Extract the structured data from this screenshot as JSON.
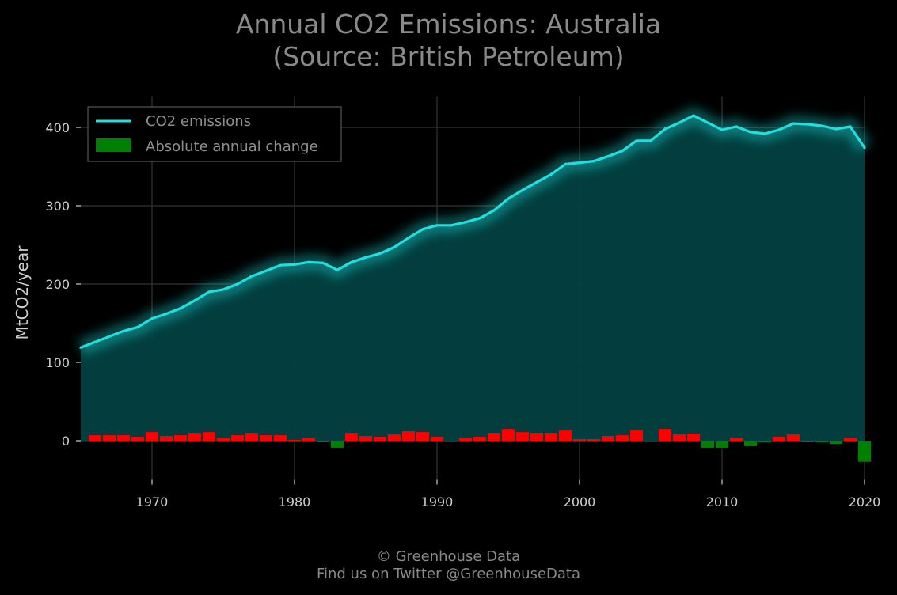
{
  "title_line1": "Annual CO2 Emissions: Australia",
  "title_line2": "(Source: British Petroleum)",
  "footer_line1": "© Greenhouse Data",
  "footer_line2": "Find us on Twitter @GreenhouseData",
  "colors": {
    "background": "#000000",
    "line": "#1de0df",
    "area": "#034040",
    "positive_bar": "#ff0000",
    "negative_bar": "#008000",
    "grid": "#2a2a2a",
    "text": "#cfcfcf",
    "title": "#8a8a8a"
  },
  "chart_data": {
    "type": "line",
    "title": "Annual CO2 Emissions: Australia",
    "subtitle": "(Source: British Petroleum)",
    "xlabel": "",
    "ylabel": "MtCO2/year",
    "xlim": [
      1965,
      2020
    ],
    "ylim": [
      -50,
      440
    ],
    "xticks": [
      1970,
      1980,
      1990,
      2000,
      2010,
      2020
    ],
    "yticks": [
      0,
      100,
      200,
      300,
      400
    ],
    "grid": true,
    "legend_position": "top-left",
    "x": [
      1965,
      1966,
      1967,
      1968,
      1969,
      1970,
      1971,
      1972,
      1973,
      1974,
      1975,
      1976,
      1977,
      1978,
      1979,
      1980,
      1981,
      1982,
      1983,
      1984,
      1985,
      1986,
      1987,
      1988,
      1989,
      1990,
      1991,
      1992,
      1993,
      1994,
      1995,
      1996,
      1997,
      1998,
      1999,
      2000,
      2001,
      2002,
      2003,
      2004,
      2005,
      2006,
      2007,
      2008,
      2009,
      2010,
      2011,
      2012,
      2013,
      2014,
      2015,
      2016,
      2017,
      2018,
      2019,
      2020
    ],
    "series": [
      {
        "name": "CO2 emissions",
        "type": "line",
        "values": [
          119,
          126,
          133,
          140,
          145,
          156,
          162,
          169,
          179,
          190,
          193,
          200,
          210,
          217,
          224,
          225,
          228,
          227,
          218,
          228,
          234,
          239,
          247,
          259,
          270,
          275,
          275,
          279,
          284,
          294,
          309,
          320,
          330,
          340,
          353,
          355,
          357,
          363,
          370,
          383,
          383,
          398,
          406,
          415,
          406,
          397,
          401,
          394,
          392,
          397,
          405,
          404,
          402,
          398,
          401,
          374
        ]
      },
      {
        "name": "Absolute annual change",
        "type": "bar",
        "values": [
          null,
          7,
          7,
          7,
          5,
          11,
          6,
          7,
          10,
          11,
          3,
          7,
          10,
          7,
          7,
          1,
          3,
          -1,
          -9,
          10,
          6,
          5,
          8,
          12,
          11,
          5,
          0,
          4,
          5,
          10,
          15,
          11,
          10,
          10,
          13,
          2,
          2,
          6,
          7,
          13,
          0,
          15,
          8,
          9,
          -9,
          -9,
          4,
          -7,
          -2,
          5,
          8,
          -1,
          -2,
          -4,
          3,
          -27
        ]
      }
    ]
  }
}
